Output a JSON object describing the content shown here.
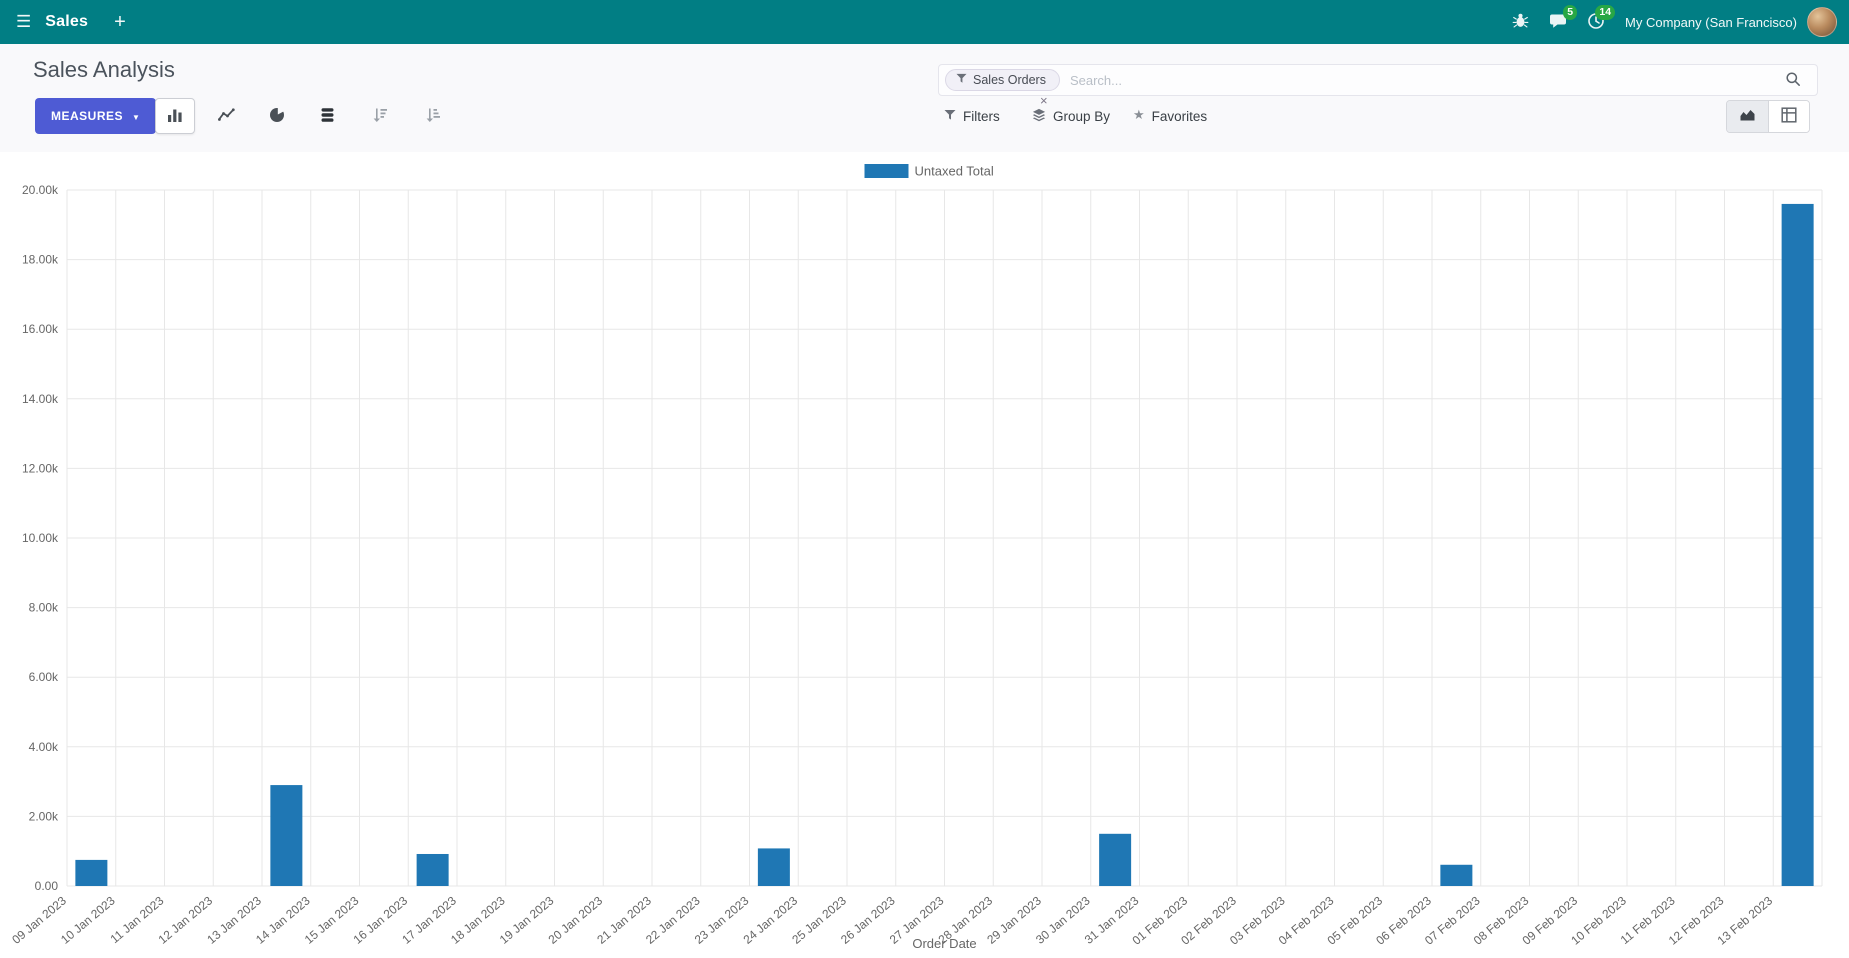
{
  "colors": {
    "navbar_bg": "#017e84",
    "primary_button": "#4e5bd4",
    "badge_green": "#28a745",
    "bar_color": "#1f77b4",
    "grid_color": "#e7e7e7",
    "axis_text": "#666666"
  },
  "navbar": {
    "menu_icon": "☰",
    "app_name": "Sales",
    "plus_icon": "+",
    "messages_badge": "5",
    "activities_badge": "14",
    "company": "My Company (San Francisco)"
  },
  "control_panel": {
    "title": "Sales Analysis",
    "measures_button": "MEASURES",
    "caret_icon": "▼",
    "filters": "Filters",
    "group_by": "Group By",
    "favorites": "Favorites",
    "star_icon": "★",
    "search": {
      "facet_label": "Sales Orders",
      "facet_remove": "×",
      "placeholder": "Search..."
    }
  },
  "chart_data": {
    "type": "bar",
    "title": "",
    "xlabel": "Order Date",
    "ylabel": "",
    "ylim": [
      0,
      20000
    ],
    "grid": true,
    "legend_position": "top-center",
    "y_tick_labels": [
      "0.00",
      "2.00k",
      "4.00k",
      "6.00k",
      "8.00k",
      "10.00k",
      "12.00k",
      "14.00k",
      "16.00k",
      "18.00k",
      "20.00k"
    ],
    "categories": [
      "09 Jan 2023",
      "10 Jan 2023",
      "11 Jan 2023",
      "12 Jan 2023",
      "13 Jan 2023",
      "14 Jan 2023",
      "15 Jan 2023",
      "16 Jan 2023",
      "17 Jan 2023",
      "18 Jan 2023",
      "19 Jan 2023",
      "20 Jan 2023",
      "21 Jan 2023",
      "22 Jan 2023",
      "23 Jan 2023",
      "24 Jan 2023",
      "25 Jan 2023",
      "26 Jan 2023",
      "27 Jan 2023",
      "28 Jan 2023",
      "29 Jan 2023",
      "30 Jan 2023",
      "31 Jan 2023",
      "01 Feb 2023",
      "02 Feb 2023",
      "03 Feb 2023",
      "04 Feb 2023",
      "05 Feb 2023",
      "06 Feb 2023",
      "07 Feb 2023",
      "08 Feb 2023",
      "09 Feb 2023",
      "10 Feb 2023",
      "11 Feb 2023",
      "12 Feb 2023",
      "13 Feb 2023"
    ],
    "series": [
      {
        "name": "Untaxed Total",
        "color": "#1f77b4",
        "values": [
          750,
          0,
          0,
          0,
          2900,
          0,
          0,
          920,
          0,
          0,
          0,
          0,
          0,
          0,
          1080,
          0,
          0,
          0,
          0,
          0,
          0,
          1500,
          0,
          0,
          0,
          0,
          0,
          0,
          610,
          0,
          0,
          0,
          0,
          0,
          0,
          19600
        ]
      }
    ]
  }
}
